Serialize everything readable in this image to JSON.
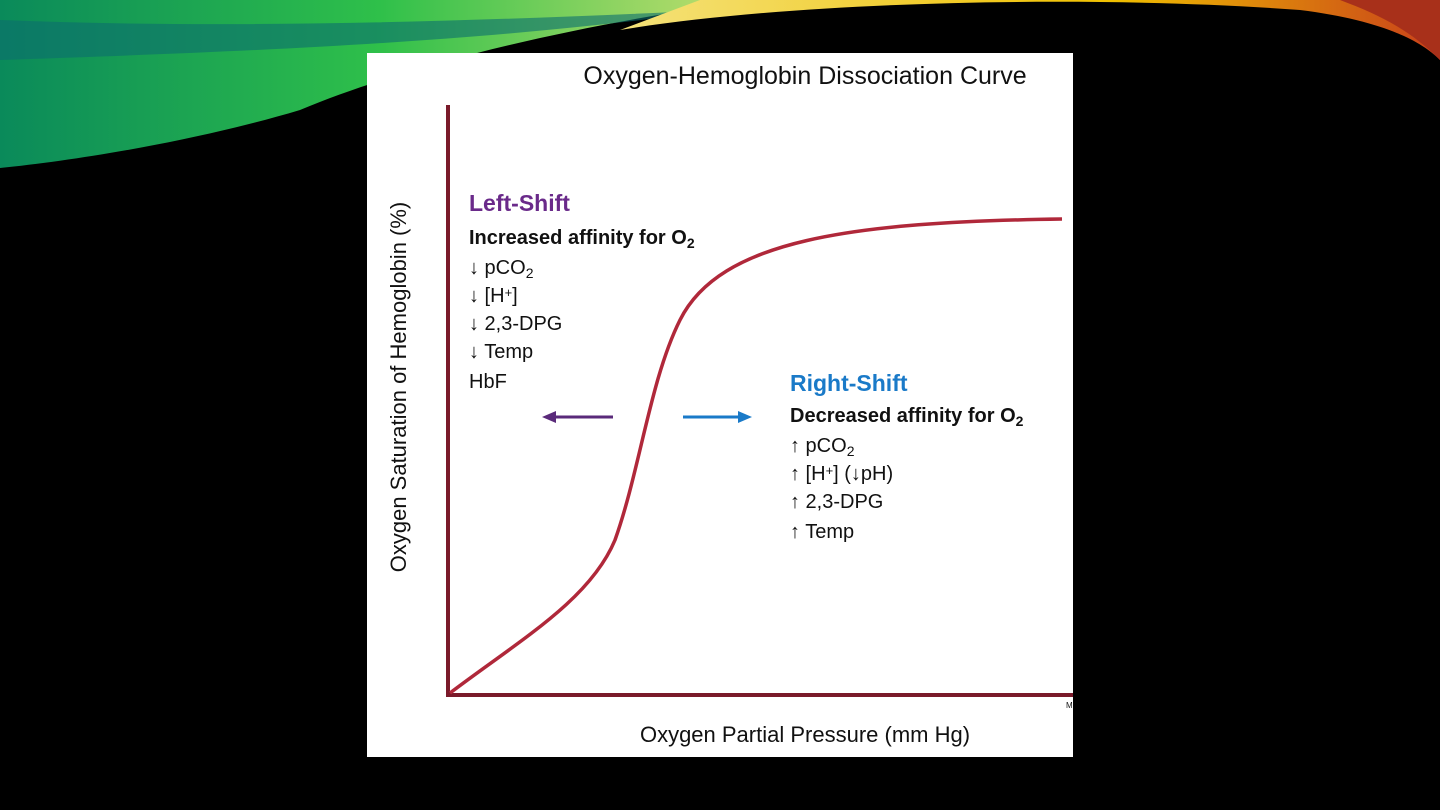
{
  "title": "Oxygen-Hemoglobin Dissociation Curve",
  "y_axis_label": "Oxygen Saturation of Hemoglobin (%)",
  "x_axis_label": "Oxygen Partial Pressure (mm Hg)",
  "corner_mark": "M",
  "left_shift": {
    "heading": "Left-Shift",
    "lines": [
      [
        {
          "text": "Increased affinity  for O",
          "weight": "bold"
        },
        {
          "text": "2",
          "weight": "bold",
          "script": "sub"
        }
      ],
      [
        {
          "text": "↓ pCO"
        },
        {
          "text": "2",
          "script": "sub"
        }
      ],
      [
        {
          "text": "↓ [H"
        },
        {
          "text": "+",
          "script": "sup"
        },
        {
          "text": "]"
        }
      ],
      [
        {
          "text": "↓ 2,3-DPG"
        }
      ],
      [
        {
          "text": "↓ Temp"
        }
      ],
      [
        {
          "text": "HbF"
        }
      ]
    ]
  },
  "right_shift": {
    "heading": "Right-Shift",
    "lines": [
      [
        {
          "text": "Decreased affinity  for O",
          "weight": "bold"
        },
        {
          "text": "2",
          "weight": "bold",
          "script": "sub"
        }
      ],
      [
        {
          "text": "↑ pCO"
        },
        {
          "text": "2",
          "script": "sub"
        }
      ],
      [
        {
          "text": "↑ [H"
        },
        {
          "text": "+",
          "script": "sup"
        },
        {
          "text": "] (↓pH)"
        }
      ],
      [
        {
          "text": "↑ 2,3-DPG"
        }
      ],
      [
        {
          "text": "↑ Temp"
        }
      ]
    ]
  }
}
